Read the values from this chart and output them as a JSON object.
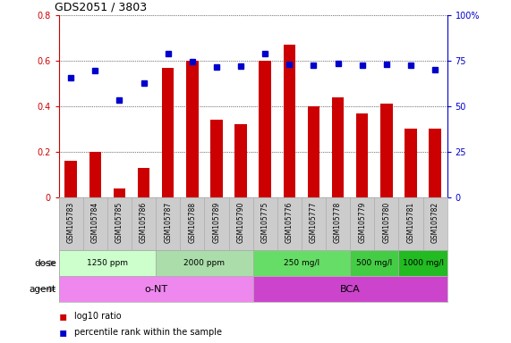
{
  "title": "GDS2051 / 3803",
  "samples": [
    "GSM105783",
    "GSM105784",
    "GSM105785",
    "GSM105786",
    "GSM105787",
    "GSM105788",
    "GSM105789",
    "GSM105790",
    "GSM105775",
    "GSM105776",
    "GSM105777",
    "GSM105778",
    "GSM105779",
    "GSM105780",
    "GSM105781",
    "GSM105782"
  ],
  "log10_ratio": [
    0.16,
    0.2,
    0.04,
    0.13,
    0.57,
    0.6,
    0.34,
    0.32,
    0.6,
    0.67,
    0.4,
    0.44,
    0.37,
    0.41,
    0.3,
    0.3
  ],
  "percentile_rank": [
    65.5,
    69.5,
    53.5,
    63.0,
    79.0,
    74.5,
    71.5,
    72.0,
    79.0,
    73.0,
    72.5,
    73.5,
    72.5,
    73.0,
    72.5,
    70.0
  ],
  "dose_groups": [
    {
      "label": "1250 ppm",
      "start": 0,
      "end": 4,
      "color": "#ccffcc"
    },
    {
      "label": "2000 ppm",
      "start": 4,
      "end": 8,
      "color": "#aaddaa"
    },
    {
      "label": "250 mg/l",
      "start": 8,
      "end": 12,
      "color": "#66dd66"
    },
    {
      "label": "500 mg/l",
      "start": 12,
      "end": 14,
      "color": "#44cc44"
    },
    {
      "label": "1000 mg/l",
      "start": 14,
      "end": 16,
      "color": "#22bb22"
    }
  ],
  "agent_groups": [
    {
      "label": "o-NT",
      "start": 0,
      "end": 8,
      "color": "#ee88ee"
    },
    {
      "label": "BCA",
      "start": 8,
      "end": 16,
      "color": "#cc44cc"
    }
  ],
  "bar_color": "#cc0000",
  "dot_color": "#0000cc",
  "ylim_left": [
    0,
    0.8
  ],
  "ylim_right": [
    0,
    100
  ],
  "yticks_left": [
    0,
    0.2,
    0.4,
    0.6,
    0.8
  ],
  "yticks_right": [
    0,
    25,
    50,
    75,
    100
  ],
  "label_color_left": "#cc0000",
  "label_color_right": "#0000cc",
  "label_strip_color": "#cccccc",
  "legend_red_label": "log10 ratio",
  "legend_blue_label": "percentile rank within the sample"
}
